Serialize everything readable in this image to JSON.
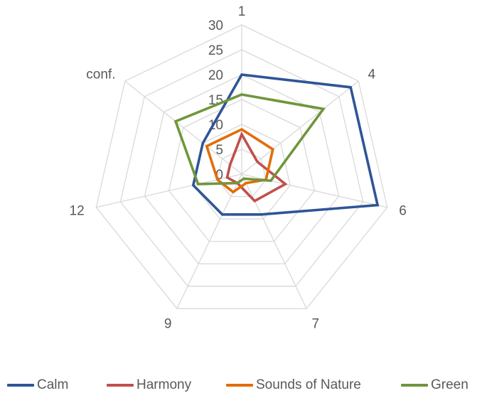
{
  "chart_data": {
    "type": "radar",
    "categories": [
      "1",
      "4",
      "6",
      "7",
      "9",
      "12",
      "conf."
    ],
    "r_ticks": [
      "0",
      "5",
      "10",
      "15",
      "20",
      "25",
      "30"
    ],
    "rlim": [
      0,
      30
    ],
    "grid": true,
    "legend_position": "bottom",
    "series": [
      {
        "name": "Calm",
        "color": "#2F5597",
        "values": [
          20,
          28,
          28,
          9,
          9,
          10,
          10
        ]
      },
      {
        "name": "Harmony",
        "color": "#C0504D",
        "values": [
          8,
          4,
          9,
          6,
          2,
          3,
          3
        ]
      },
      {
        "name": "Sounds of Nature",
        "color": "#E36C0A",
        "values": [
          9,
          8,
          5,
          2,
          4,
          5,
          9
        ]
      },
      {
        "name": "Green",
        "color": "#70963C",
        "values": [
          16,
          21,
          6,
          1,
          2,
          9,
          17
        ]
      }
    ]
  }
}
